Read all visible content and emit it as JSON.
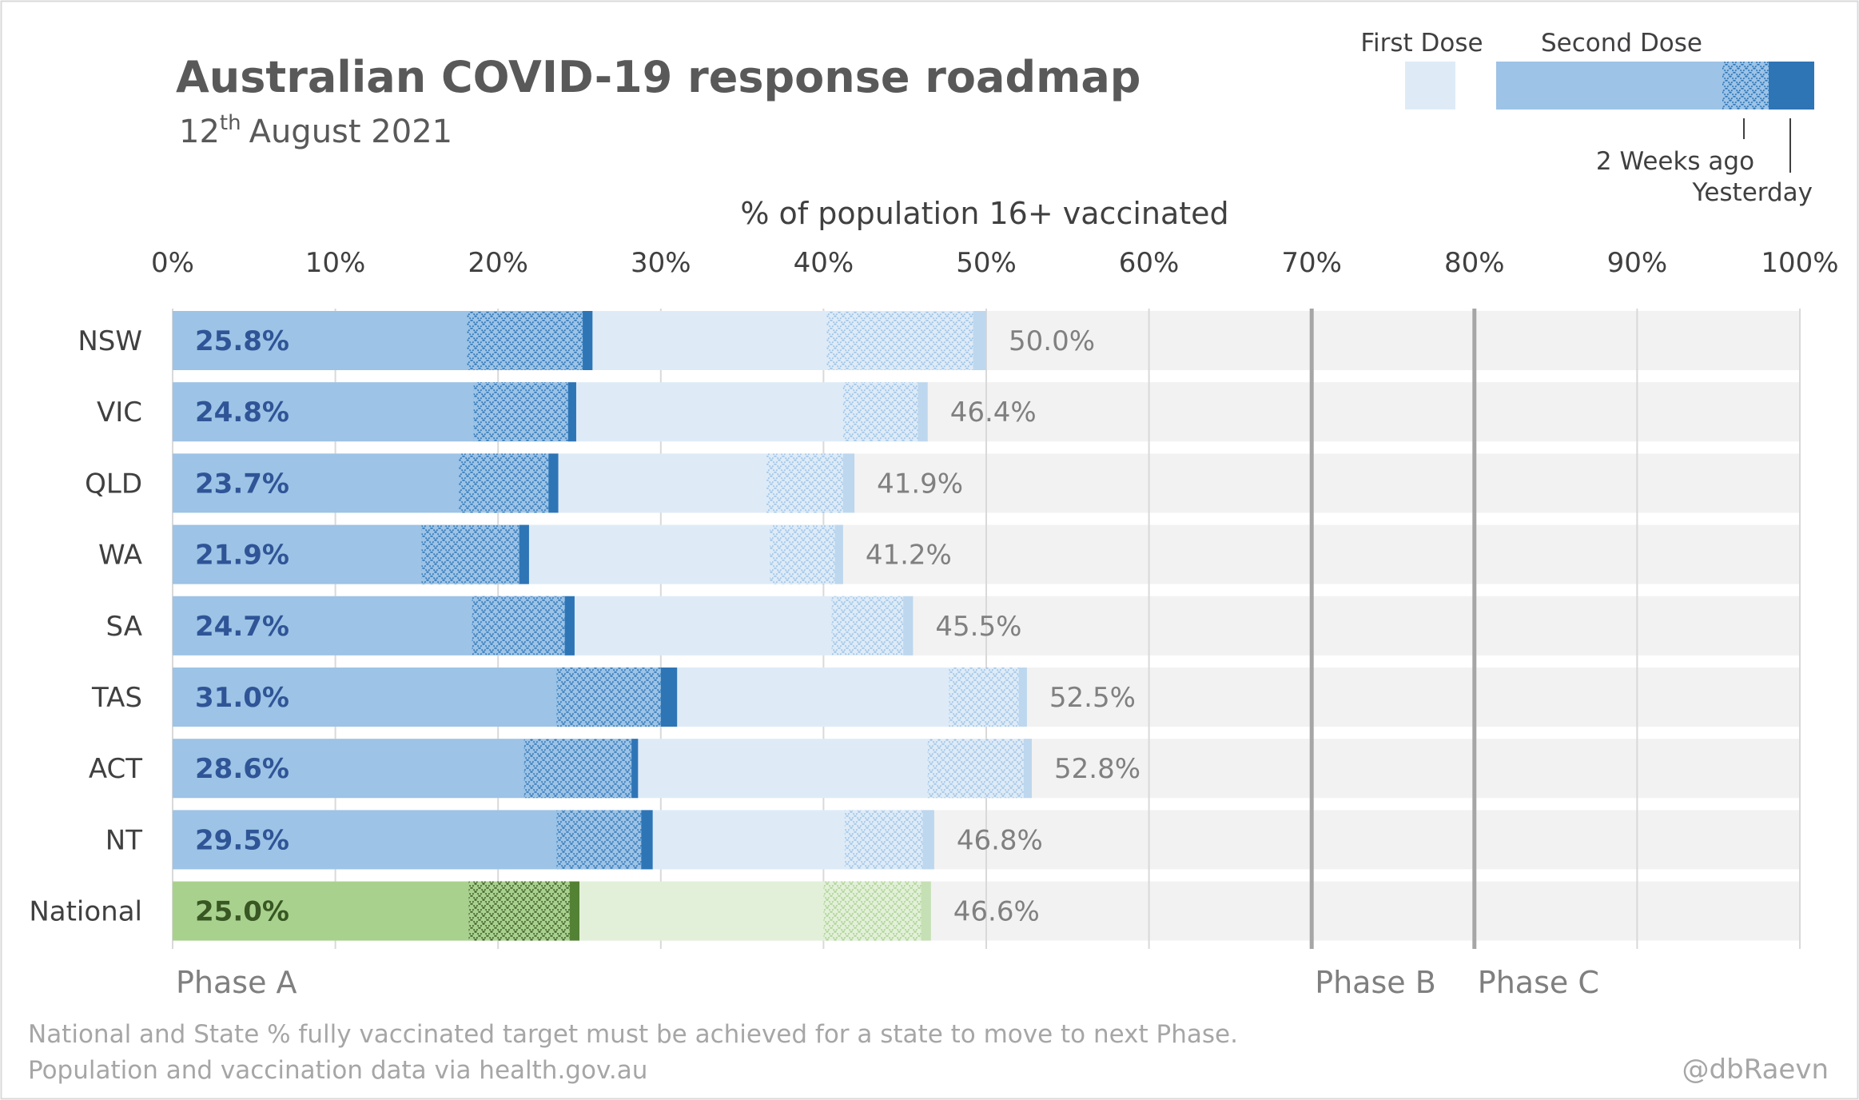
{
  "title": "Australian COVID-19 response roadmap",
  "date": {
    "day": "12",
    "suffix": "th",
    "rest": "August 2021"
  },
  "colors": {
    "state_second": "#9dc3e6",
    "state_second_dark": "#2e75b6",
    "state_first": "#deebf7",
    "state_first_end": "#bdd7ee",
    "national_second": "#a9d18e",
    "national_second_dark": "#548235",
    "national_first": "#e2f0d9",
    "national_first_end": "#c5e0b4",
    "panel": "#f2f2f2",
    "grid": "#d9d9d9",
    "phase_line": "#a6a6a6",
    "second_label": "#2f5597",
    "first_label": "#808080"
  },
  "legend": {
    "first_dose": "First Dose",
    "second_dose": "Second Dose",
    "two_weeks_ago": "2 Weeks ago",
    "yesterday": "Yesterday"
  },
  "chart_data": {
    "type": "bar",
    "orientation": "horizontal",
    "xlabel": "% of population 16+ vaccinated",
    "xlim": [
      0,
      100
    ],
    "x_ticks": [
      "0%",
      "10%",
      "20%",
      "30%",
      "40%",
      "50%",
      "60%",
      "70%",
      "80%",
      "90%",
      "100%"
    ],
    "categories": [
      "NSW",
      "VIC",
      "QLD",
      "WA",
      "SA",
      "TAS",
      "ACT",
      "NT",
      "National"
    ],
    "series": [
      {
        "name": "Second Dose",
        "values": [
          25.8,
          24.8,
          23.7,
          21.9,
          24.7,
          31.0,
          28.6,
          29.5,
          25.0
        ],
        "labels": [
          "25.8%",
          "24.8%",
          "23.7%",
          "21.9%",
          "24.7%",
          "31.0%",
          "28.6%",
          "29.5%",
          "25.0%"
        ]
      },
      {
        "name": "Second Dose (2 Weeks ago)",
        "values": [
          18.1,
          18.5,
          17.6,
          15.3,
          18.4,
          23.6,
          21.6,
          23.6,
          18.2
        ]
      },
      {
        "name": "Second Dose (Yesterday)",
        "values": [
          25.2,
          24.3,
          23.1,
          21.3,
          24.1,
          30.0,
          28.2,
          28.8,
          24.4
        ]
      },
      {
        "name": "First Dose",
        "values": [
          50.0,
          46.4,
          41.9,
          41.2,
          45.5,
          52.5,
          52.8,
          46.8,
          46.6
        ],
        "labels": [
          "50.0%",
          "46.4%",
          "41.9%",
          "41.2%",
          "45.5%",
          "52.5%",
          "52.8%",
          "46.8%",
          "46.6%"
        ]
      },
      {
        "name": "First Dose (2 Weeks ago)",
        "values": [
          40.2,
          41.2,
          36.5,
          36.7,
          40.5,
          47.7,
          46.4,
          41.3,
          40.0
        ]
      },
      {
        "name": "First Dose (Yesterday)",
        "values": [
          49.2,
          45.8,
          41.2,
          40.7,
          44.9,
          52.0,
          52.3,
          46.1,
          46.0
        ]
      }
    ],
    "phase_thresholds": [
      70,
      80
    ],
    "phases": [
      {
        "label": "Phase A",
        "start": 0
      },
      {
        "label": "Phase B",
        "start": 70
      },
      {
        "label": "Phase C",
        "start": 80
      }
    ],
    "grid": true
  },
  "footnote": {
    "line1": "National and State % fully vaccinated target must be achieved for a state to move to next Phase.",
    "line2": "Population and vaccination data via health.gov.au",
    "credit": "@dbRaevn"
  }
}
